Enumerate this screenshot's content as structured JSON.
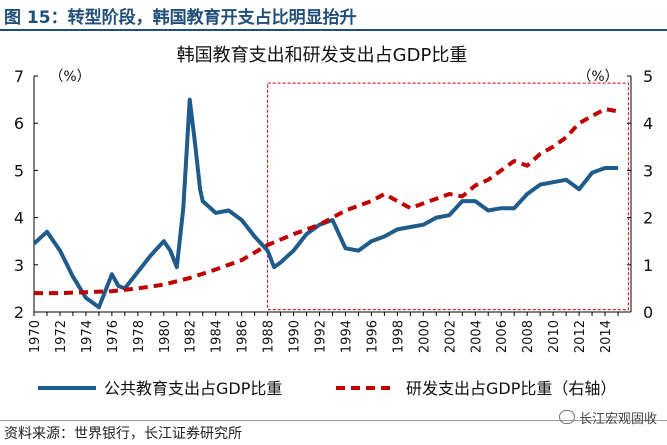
{
  "figure": {
    "heading": "图 15：转型阶段，韩国教育开支占比明显抬升",
    "source": "资料来源：世界银行，长江证券研究所",
    "watermark": "长江宏观固收"
  },
  "colors": {
    "header": "#1f4e79",
    "left_series": "#1f5c8b",
    "right_series": "#c00000",
    "highlight_box": "#cc0000"
  },
  "chart_data": {
    "type": "line",
    "title": "韩国教育支出和研发支出占GDP比重",
    "left_unit": "（%）",
    "right_unit": "（%）",
    "y_left": {
      "min": 2,
      "max": 7,
      "ticks": [
        "2",
        "3",
        "4",
        "5",
        "6",
        "7"
      ]
    },
    "y_right": {
      "min": 0,
      "max": 5,
      "ticks": [
        "0",
        "1",
        "2",
        "3",
        "4",
        "5"
      ]
    },
    "x_range": [
      1970,
      2016
    ],
    "x_ticks": [
      "1970",
      "1972",
      "1974",
      "1976",
      "1978",
      "1980",
      "1982",
      "1984",
      "1986",
      "1988",
      "1990",
      "1992",
      "1994",
      "1996",
      "1998",
      "2000",
      "2002",
      "2004",
      "2006",
      "2008",
      "2010",
      "2012",
      "2014"
    ],
    "highlight": {
      "x_from": 1988,
      "x_to": 2015.8,
      "y_left_from": 2.05,
      "y_left_to": 6.85
    },
    "series": [
      {
        "name": "公共教育支出占GDP比重",
        "axis": "left",
        "style": "solid",
        "x": [
          1970,
          1971,
          1972,
          1973,
          1974,
          1975,
          1976,
          1976.5,
          1977,
          1978,
          1979,
          1980,
          1980.5,
          1981,
          1981.5,
          1982,
          1982.4,
          1982.8,
          1983,
          1984,
          1985,
          1986,
          1987,
          1988,
          1988.5,
          1989,
          1990,
          1991,
          1992,
          1993,
          1994,
          1995,
          1996,
          1997,
          1998,
          1999,
          2000,
          2001,
          2002,
          2003,
          2004,
          2005,
          2006,
          2007,
          2008,
          2009,
          2010,
          2011,
          2012,
          2013,
          2014,
          2015
        ],
        "y": [
          3.45,
          3.7,
          3.3,
          2.75,
          2.3,
          2.1,
          2.8,
          2.55,
          2.5,
          2.85,
          3.2,
          3.5,
          3.3,
          2.95,
          4.2,
          6.5,
          5.6,
          4.6,
          4.35,
          4.1,
          4.15,
          3.95,
          3.6,
          3.3,
          2.95,
          3.05,
          3.3,
          3.65,
          3.85,
          3.95,
          3.35,
          3.3,
          3.5,
          3.6,
          3.75,
          3.8,
          3.85,
          4.0,
          4.05,
          4.35,
          4.35,
          4.15,
          4.2,
          4.2,
          4.5,
          4.7,
          4.75,
          4.8,
          4.6,
          4.95,
          5.05,
          5.05
        ]
      },
      {
        "name": "研发支出占GDP比重（右轴）",
        "axis": "right",
        "style": "dashed",
        "x": [
          1970,
          1972,
          1974,
          1976,
          1978,
          1980,
          1982,
          1984,
          1986,
          1988,
          1990,
          1992,
          1994,
          1996,
          1997,
          1998,
          1999,
          2000,
          2001,
          2002,
          2003,
          2004,
          2005,
          2006,
          2007,
          2008,
          2009,
          2010,
          2011,
          2012,
          2013,
          2014,
          2015
        ],
        "y": [
          0.4,
          0.4,
          0.42,
          0.44,
          0.5,
          0.58,
          0.72,
          0.9,
          1.1,
          1.42,
          1.65,
          1.85,
          2.15,
          2.35,
          2.5,
          2.35,
          2.2,
          2.3,
          2.4,
          2.5,
          2.45,
          2.68,
          2.8,
          3.0,
          3.2,
          3.1,
          3.35,
          3.5,
          3.7,
          4.0,
          4.15,
          4.3,
          4.25
        ]
      }
    ]
  }
}
